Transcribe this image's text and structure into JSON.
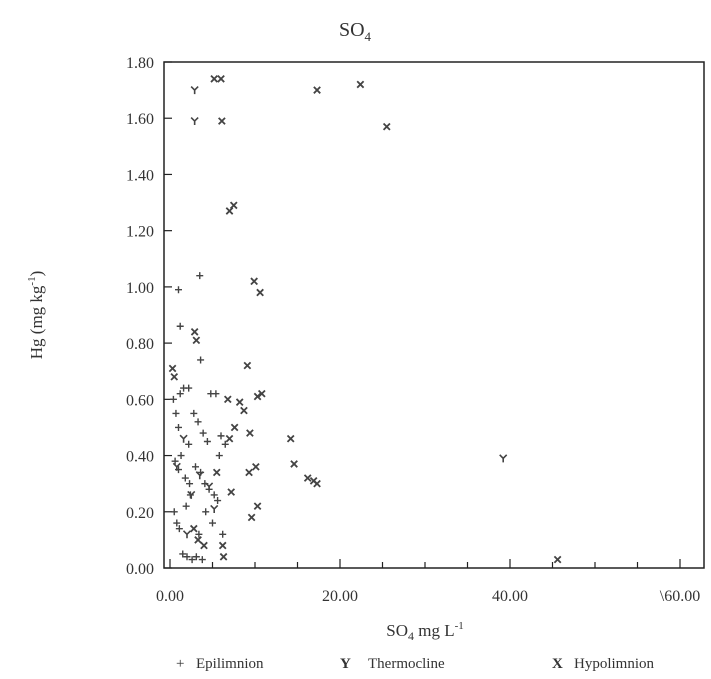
{
  "chart_data": {
    "type": "scatter",
    "title": "SO",
    "title_sub": "4",
    "xlabel": "SO",
    "xlabel_sub": "4",
    "xlabel_rest": " mg L",
    "xlabel_sup": "-1",
    "ylabel": "Hg (mg kg",
    "ylabel_sup": "-1",
    "ylabel_end": ")",
    "xlim": [
      0,
      60
    ],
    "ylim": [
      0,
      1.8
    ],
    "x_ticks": [
      {
        "value": 0,
        "label": "0.00"
      },
      {
        "value": 20,
        "label": "20.00"
      },
      {
        "value": 40,
        "label": "40.00"
      },
      {
        "value": 60,
        "label": "\\60.00"
      }
    ],
    "y_ticks": [
      {
        "value": 0,
        "label": "0.00"
      },
      {
        "value": 0.2,
        "label": "0.20"
      },
      {
        "value": 0.4,
        "label": "0.40"
      },
      {
        "value": 0.6,
        "label": "0.60"
      },
      {
        "value": 0.8,
        "label": "0.80"
      },
      {
        "value": 1.0,
        "label": "1.00"
      },
      {
        "value": 1.2,
        "label": "1.20"
      },
      {
        "value": 1.4,
        "label": "1.40"
      },
      {
        "value": 1.6,
        "label": "1.60"
      },
      {
        "value": 1.8,
        "label": "1.80"
      }
    ],
    "grid": false,
    "legend_position": "bottom",
    "series": [
      {
        "name": "Epilimnion",
        "marker": "plus",
        "points": [
          [
            1.0,
            0.99
          ],
          [
            1.2,
            0.86
          ],
          [
            3.5,
            1.04
          ],
          [
            3.6,
            0.74
          ],
          [
            0.4,
            0.6
          ],
          [
            0.7,
            0.55
          ],
          [
            1.0,
            0.5
          ],
          [
            1.2,
            0.62
          ],
          [
            1.6,
            0.64
          ],
          [
            2.2,
            0.64
          ],
          [
            0.6,
            0.38
          ],
          [
            1.0,
            0.35
          ],
          [
            1.3,
            0.4
          ],
          [
            1.8,
            0.32
          ],
          [
            2.3,
            0.3
          ],
          [
            0.5,
            0.2
          ],
          [
            0.8,
            0.16
          ],
          [
            1.1,
            0.14
          ],
          [
            1.9,
            0.22
          ],
          [
            2.4,
            0.26
          ],
          [
            1.5,
            0.05
          ],
          [
            2.0,
            0.04
          ],
          [
            2.6,
            0.03
          ],
          [
            3.1,
            0.04
          ],
          [
            3.8,
            0.03
          ],
          [
            2.8,
            0.55
          ],
          [
            3.3,
            0.52
          ],
          [
            3.9,
            0.48
          ],
          [
            4.4,
            0.45
          ],
          [
            3.0,
            0.36
          ],
          [
            3.6,
            0.34
          ],
          [
            4.1,
            0.3
          ],
          [
            4.6,
            0.28
          ],
          [
            5.2,
            0.26
          ],
          [
            5.6,
            0.24
          ],
          [
            4.8,
            0.62
          ],
          [
            5.4,
            0.62
          ],
          [
            6.0,
            0.47
          ],
          [
            6.5,
            0.44
          ],
          [
            4.2,
            0.2
          ],
          [
            5.0,
            0.16
          ],
          [
            6.2,
            0.12
          ],
          [
            3.4,
            0.12
          ],
          [
            5.8,
            0.4
          ],
          [
            2.2,
            0.44
          ]
        ]
      },
      {
        "name": "Thermocline",
        "marker": "y",
        "points": [
          [
            2.9,
            1.7
          ],
          [
            2.9,
            1.59
          ],
          [
            39.2,
            0.39
          ],
          [
            2.5,
            0.26
          ],
          [
            3.5,
            0.33
          ],
          [
            4.6,
            0.29
          ],
          [
            5.2,
            0.21
          ],
          [
            0.8,
            0.36
          ],
          [
            1.6,
            0.46
          ],
          [
            2.0,
            0.12
          ]
        ]
      },
      {
        "name": "Hypolimnion",
        "marker": "x",
        "points": [
          [
            5.2,
            1.74
          ],
          [
            6.0,
            1.74
          ],
          [
            17.3,
            1.7
          ],
          [
            22.4,
            1.72
          ],
          [
            25.5,
            1.57
          ],
          [
            6.1,
            1.59
          ],
          [
            7.0,
            1.27
          ],
          [
            7.5,
            1.29
          ],
          [
            9.9,
            1.02
          ],
          [
            10.6,
            0.98
          ],
          [
            2.9,
            0.84
          ],
          [
            3.1,
            0.81
          ],
          [
            9.1,
            0.72
          ],
          [
            10.3,
            0.61
          ],
          [
            10.8,
            0.62
          ],
          [
            8.2,
            0.59
          ],
          [
            8.7,
            0.56
          ],
          [
            7.6,
            0.5
          ],
          [
            7.0,
            0.46
          ],
          [
            9.4,
            0.48
          ],
          [
            14.2,
            0.46
          ],
          [
            14.6,
            0.37
          ],
          [
            16.2,
            0.32
          ],
          [
            16.9,
            0.31
          ],
          [
            17.3,
            0.3
          ],
          [
            9.3,
            0.34
          ],
          [
            10.1,
            0.36
          ],
          [
            10.3,
            0.22
          ],
          [
            9.6,
            0.18
          ],
          [
            7.2,
            0.27
          ],
          [
            6.2,
            0.08
          ],
          [
            6.3,
            0.04
          ],
          [
            3.3,
            0.1
          ],
          [
            2.8,
            0.14
          ],
          [
            45.6,
            0.03
          ],
          [
            0.3,
            0.71
          ],
          [
            0.5,
            0.68
          ],
          [
            4.0,
            0.08
          ],
          [
            5.5,
            0.34
          ],
          [
            6.8,
            0.6
          ]
        ]
      }
    ]
  },
  "legend": [
    {
      "symbol": "+",
      "label": "Epilimnion"
    },
    {
      "symbol": "Y",
      "label": "Thermocline"
    },
    {
      "symbol": "X",
      "label": "Hypolimnion"
    }
  ]
}
